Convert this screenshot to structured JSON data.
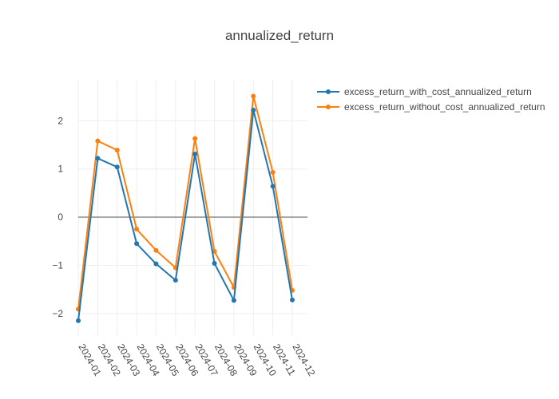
{
  "chart_data": {
    "type": "line",
    "title": "annualized_return",
    "categories": [
      "2024-01",
      "2024-02",
      "2024-03",
      "2024-04",
      "2024-05",
      "2024-06",
      "2024-07",
      "2024-08",
      "2024-09",
      "2024-10",
      "2024-11",
      "2024-12"
    ],
    "ylim": [
      -2.45,
      2.85
    ],
    "yticks": [
      -2,
      -1,
      0,
      1,
      2
    ],
    "ytick_labels": [
      "−2",
      "−1",
      "0",
      "1",
      "2"
    ],
    "grid": true,
    "legend": "top-right",
    "series": [
      {
        "name": "excess_return_with_cost_annualized_return",
        "color": "#1f77b4",
        "values": [
          -2.15,
          1.22,
          1.04,
          -0.55,
          -0.97,
          -1.31,
          1.31,
          -0.96,
          -1.73,
          2.22,
          0.64,
          -1.72
        ]
      },
      {
        "name": "excess_return_without_cost_annualized_return",
        "color": "#ff7f0e",
        "values": [
          -1.91,
          1.58,
          1.39,
          -0.25,
          -0.69,
          -1.05,
          1.63,
          -0.71,
          -1.46,
          2.51,
          0.93,
          -1.52
        ]
      }
    ]
  }
}
